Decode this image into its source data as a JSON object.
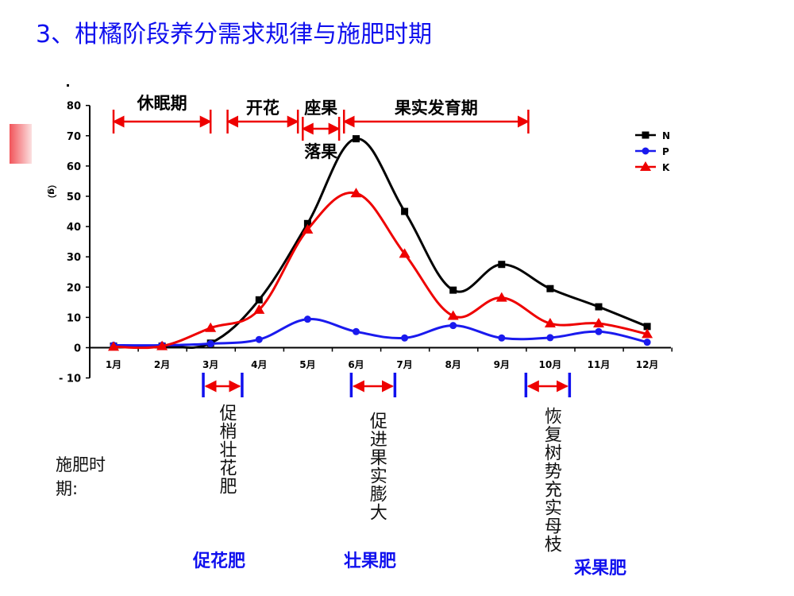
{
  "title": "3、柑橘阶段养分需求规律与施肥时期",
  "fertilization_label": "施肥时期:",
  "colors": {
    "n": "#000000",
    "p": "#1a1aee",
    "k": "#ee0000",
    "title": "#1010ee",
    "arrow": "#ee0000",
    "bracket": "#1010ee"
  },
  "chart_data": {
    "type": "line",
    "x": [
      "1月",
      "2月",
      "3月",
      "4月",
      "5月",
      "6月",
      "7月",
      "8月",
      "9月",
      "10月",
      "11月",
      "12月"
    ],
    "series": [
      {
        "name": "N",
        "marker": "square",
        "values": [
          0.5,
          0.5,
          1.5,
          15.8,
          41,
          69,
          45,
          19,
          27.5,
          19.5,
          13.5,
          7
        ]
      },
      {
        "name": "P",
        "marker": "circle",
        "values": [
          0.8,
          0.8,
          1.3,
          2.7,
          9.4,
          5.3,
          3.2,
          7.3,
          3.2,
          3.3,
          5.3,
          1.8
        ]
      },
      {
        "name": "K",
        "marker": "triangle",
        "values": [
          0.3,
          0.5,
          6.5,
          12.5,
          39,
          51,
          31,
          10.5,
          16.5,
          8,
          8,
          4.5
        ]
      }
    ],
    "ylim": [
      -10,
      80
    ],
    "yticks": [
      80,
      70,
      60,
      50,
      40,
      30,
      20,
      10,
      0,
      -10
    ],
    "ytick_labels": [
      "80",
      "70",
      "60",
      "50",
      "40",
      "30",
      "20",
      "10",
      "0",
      "- 10"
    ],
    "ylabel": "（g）",
    "legend_position": "top-right",
    "stages": [
      {
        "label": "休眠期",
        "from": 1,
        "to": 3
      },
      {
        "label": "开花",
        "from": 3.35,
        "to": 4.8
      },
      {
        "label": "座果",
        "from": 4.9,
        "to": 5.65
      },
      {
        "label": "落果",
        "from": 4.9,
        "to": 5.65
      },
      {
        "label": "果实发育期",
        "from": 5.75,
        "to": 9.55
      }
    ],
    "fertilization_periods": [
      {
        "label": "促梢壮花肥",
        "from": 2.85,
        "to": 3.65,
        "name": "促花肥"
      },
      {
        "label": "促进果实膨大",
        "from": 5.9,
        "to": 6.8,
        "name": "壮果肥"
      },
      {
        "label": "恢复树势充实母枝",
        "from": 9.5,
        "to": 10.4,
        "name": "采果肥"
      }
    ]
  }
}
